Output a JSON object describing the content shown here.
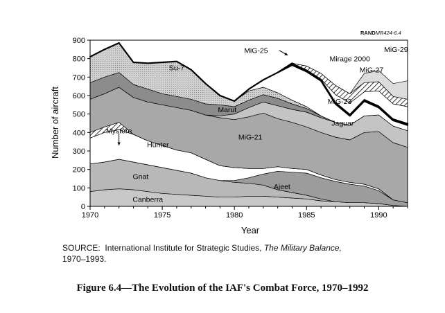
{
  "figure_id": {
    "prefix": "RAND",
    "code": "MR424-6.4"
  },
  "source": {
    "label": "SOURCE:",
    "text_before": "International Institute for Strategic Studies,",
    "publication": "The Military Balance,",
    "text_after": "1970–1993."
  },
  "caption": "Figure 6.4—The Evolution of the IAF's Combat Force, 1970–1992",
  "chart_data": {
    "type": "area",
    "stacked": true,
    "xlabel": "Year",
    "ylabel": "Number of aircraft",
    "xlim": [
      1970,
      1992
    ],
    "ylim": [
      0,
      900
    ],
    "xticks": [
      1970,
      1975,
      1980,
      1985,
      1990
    ],
    "yticks": [
      0,
      100,
      200,
      300,
      400,
      500,
      600,
      700,
      800,
      900
    ],
    "grid": false,
    "x": [
      1970,
      1971,
      1972,
      1973,
      1974,
      1975,
      1976,
      1977,
      1978,
      1979,
      1980,
      1981,
      1982,
      1983,
      1984,
      1985,
      1986,
      1987,
      1988,
      1989,
      1990,
      1991,
      1992
    ],
    "series": [
      {
        "name": "Canberra",
        "color": "#c8c8c8",
        "pattern": "light",
        "label_anchor": [
          1974,
          40
        ],
        "values": [
          80,
          90,
          95,
          90,
          80,
          70,
          65,
          60,
          55,
          50,
          50,
          55,
          55,
          50,
          45,
          40,
          30,
          25,
          20,
          20,
          15,
          5,
          0
        ]
      },
      {
        "name": "Gnat",
        "color": "#b8b8b8",
        "pattern": "dark",
        "label_anchor": [
          1973.5,
          163
        ],
        "values": [
          150,
          150,
          160,
          150,
          145,
          140,
          130,
          120,
          100,
          90,
          80,
          70,
          60,
          40,
          30,
          20,
          10,
          0,
          0,
          0,
          0,
          0,
          0
        ]
      },
      {
        "name": "Ajeet",
        "color": "#9c9c9c",
        "pattern": "dark",
        "label_anchor": [
          1983.3,
          108
        ],
        "values": [
          0,
          0,
          0,
          0,
          0,
          0,
          0,
          0,
          0,
          0,
          10,
          30,
          60,
          100,
          110,
          120,
          115,
          110,
          100,
          90,
          70,
          30,
          20
        ]
      },
      {
        "name": "Hunter",
        "color": "#ffffff",
        "pattern": "none",
        "label_anchor": [
          1974.7,
          335
        ],
        "values": [
          140,
          160,
          160,
          150,
          130,
          120,
          110,
          110,
          100,
          80,
          70,
          50,
          30,
          25,
          20,
          20,
          15,
          10,
          10,
          10,
          10,
          0,
          0
        ]
      },
      {
        "name": "Mystère",
        "color": "#ffffff",
        "pattern": "hatch",
        "label_anchor": [
          1972,
          410
        ],
        "values": [
          30,
          30,
          40,
          0,
          0,
          0,
          0,
          0,
          0,
          0,
          0,
          0,
          0,
          0,
          0,
          0,
          0,
          0,
          0,
          0,
          0,
          0,
          0
        ]
      },
      {
        "name": "MiG-21",
        "color": "#a8a8a8",
        "pattern": "light",
        "label_anchor": [
          1981.1,
          377
        ],
        "values": [
          180,
          180,
          190,
          200,
          210,
          220,
          230,
          230,
          240,
          260,
          260,
          280,
          300,
          260,
          250,
          230,
          230,
          230,
          230,
          280,
          310,
          310,
          300
        ]
      },
      {
        "name": "Jaguar",
        "color": "#c4c4c4",
        "pattern": "light",
        "label_anchor": [
          1987.5,
          451
        ],
        "values": [
          0,
          0,
          0,
          0,
          0,
          0,
          0,
          0,
          0,
          10,
          30,
          50,
          60,
          70,
          70,
          80,
          80,
          80,
          80,
          90,
          90,
          90,
          90
        ]
      },
      {
        "name": "Marut",
        "color": "#8c8c8c",
        "pattern": "dark",
        "label_anchor": [
          1979.5,
          525
        ],
        "values": [
          90,
          90,
          80,
          70,
          70,
          60,
          60,
          60,
          60,
          60,
          40,
          40,
          40,
          40,
          30,
          20,
          10,
          0,
          0,
          0,
          0,
          0,
          0
        ]
      },
      {
        "name": "Su-7",
        "color": "#d6d6d6",
        "pattern": "light",
        "label_anchor": [
          1976,
          752
        ],
        "values": [
          140,
          150,
          160,
          120,
          140,
          170,
          190,
          160,
          110,
          50,
          30,
          50,
          40,
          30,
          20,
          10,
          0,
          0,
          0,
          0,
          0,
          0,
          0
        ]
      },
      {
        "name": "MiG-23",
        "color": "#ffffff",
        "pattern": "none",
        "label_anchor": [
          1987.3,
          570
        ],
        "values": [
          0,
          0,
          0,
          0,
          0,
          0,
          0,
          0,
          0,
          0,
          0,
          10,
          40,
          110,
          190,
          190,
          190,
          100,
          50,
          80,
          40,
          30,
          30
        ]
      },
      {
        "name": "MiG-25",
        "color": "#000000",
        "pattern": "line",
        "label_anchor": [
          1981.5,
          845
        ],
        "values": [
          0,
          0,
          0,
          0,
          0,
          0,
          0,
          0,
          0,
          0,
          0,
          0,
          0,
          0,
          10,
          10,
          10,
          10,
          10,
          10,
          10,
          10,
          10
        ]
      },
      {
        "name": "MiG-27",
        "color": "#ffffff",
        "pattern": "none",
        "label_anchor": [
          1989.5,
          740
        ],
        "values": [
          0,
          0,
          0,
          0,
          0,
          0,
          0,
          0,
          0,
          0,
          0,
          0,
          0,
          0,
          0,
          0,
          0,
          40,
          60,
          40,
          80,
          80,
          90
        ]
      },
      {
        "name": "Mirage 2000",
        "color": "#ffffff",
        "pattern": "hatch",
        "label_anchor": [
          1988,
          800
        ],
        "values": [
          0,
          0,
          0,
          0,
          0,
          0,
          0,
          0,
          0,
          0,
          0,
          0,
          0,
          0,
          0,
          20,
          30,
          50,
          50,
          50,
          50,
          40,
          40
        ]
      },
      {
        "name": "MiG-29",
        "color": "#dcdcdc",
        "pattern": "light",
        "label_anchor": [
          1991.2,
          852
        ],
        "values": [
          0,
          0,
          0,
          0,
          0,
          0,
          0,
          0,
          0,
          0,
          0,
          0,
          0,
          0,
          0,
          0,
          0,
          0,
          0,
          50,
          60,
          70,
          100
        ]
      }
    ]
  }
}
